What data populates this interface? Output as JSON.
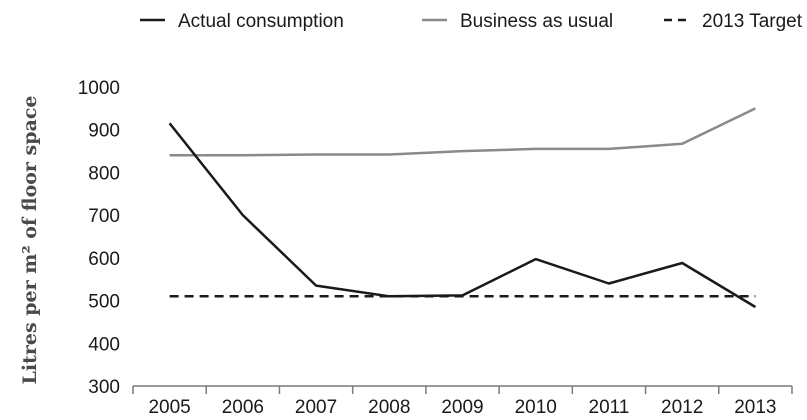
{
  "chart_data": {
    "type": "line",
    "title": "",
    "xlabel": "",
    "ylabel": "Litres per m² of floor space",
    "x": [
      "2005",
      "2006",
      "2007",
      "2008",
      "2009",
      "2010",
      "2011",
      "2012",
      "2013"
    ],
    "ylim": [
      300,
      1000
    ],
    "yticks": [
      300,
      400,
      500,
      600,
      700,
      800,
      900,
      1000
    ],
    "grid": false,
    "legend_position": "top",
    "series": [
      {
        "name": "Actual consumption",
        "color": "#1a1a1a",
        "dash": "solid",
        "values": [
          915,
          700,
          535,
          510,
          512,
          597,
          540,
          588,
          485
        ]
      },
      {
        "name": "Business as usual",
        "color": "#8a8a8a",
        "dash": "solid",
        "values": [
          840,
          840,
          842,
          842,
          850,
          855,
          855,
          867,
          950
        ]
      },
      {
        "name": "2013 Target",
        "color": "#1a1a1a",
        "dash": "dashed",
        "values": [
          510,
          510,
          510,
          510,
          510,
          510,
          510,
          510,
          510
        ]
      }
    ]
  }
}
